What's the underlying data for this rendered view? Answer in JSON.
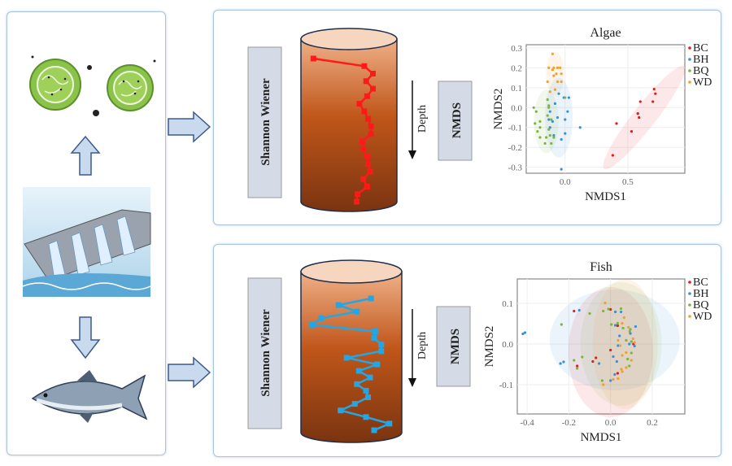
{
  "colors": {
    "BC": "#e41a1c",
    "BH": "#3a8fd9",
    "BQ": "#7cb342",
    "WD": "#f0a030",
    "algae_profile": "#ff1a1a",
    "fish_profile": "#22a7e6",
    "arrow_fill": "#c9d9ee",
    "arrow_stroke": "#3b5b8c",
    "label_box": "#d5dbe6"
  },
  "left_panel": {
    "icons": [
      "algae-cells-icon",
      "arrow-up-icon",
      "dam-icon",
      "arrow-down-icon",
      "fish-icon"
    ]
  },
  "top": {
    "shannon_label": "Shannon Wiener",
    "depth_label": "Depth",
    "nmds_label": "NMDS",
    "profile": [
      0.13,
      0.66,
      0.75,
      0.68,
      0.75,
      0.69,
      0.61,
      0.66,
      0.7,
      0.73,
      0.73,
      0.64,
      0.65,
      0.69,
      0.7,
      0.72,
      0.65,
      0.69,
      0.59,
      0.58
    ]
  },
  "bottom": {
    "shannon_label": "Shannon Wiener",
    "depth_label": "Depth",
    "nmds_label": "NMDS",
    "profile": [
      0.69,
      0.37,
      0.55,
      0.2,
      0.11,
      0.73,
      0.72,
      0.79,
      0.79,
      0.45,
      0.75,
      0.57,
      0.68,
      0.55,
      0.64,
      0.66,
      0.53,
      0.39,
      0.64,
      0.87,
      0.72
    ]
  },
  "chart_data": [
    {
      "type": "scatter",
      "title": "Algae",
      "xlabel": "NMDS1",
      "ylabel": "NMDS2",
      "xlim": [
        -0.31,
        0.955
      ],
      "ylim": [
        -0.33,
        0.316
      ],
      "xticks": [
        "0.0",
        "0.5"
      ],
      "xtick_values": [
        0,
        0.5
      ],
      "yticks": [
        "0.3",
        "0.2",
        "0.1",
        "0.0",
        "-0.1",
        "-0.2",
        "-0.3"
      ],
      "ytick_values": [
        0.3,
        0.2,
        0.1,
        0,
        -0.1,
        -0.2,
        -0.3
      ],
      "grid": true,
      "legend": "right",
      "ellipses": true,
      "series": [
        {
          "name": "BC",
          "points": [
            [
              0.71,
              0.093
            ],
            [
              0.72,
              0.07
            ],
            [
              0.7,
              0.03
            ],
            [
              0.6,
              0.03
            ],
            [
              0.58,
              -0.03
            ],
            [
              0.59,
              -0.05
            ],
            [
              0.53,
              -0.12
            ],
            [
              0.41,
              -0.08
            ],
            [
              0.38,
              -0.24
            ]
          ]
        },
        {
          "name": "BH",
          "points": [
            [
              -0.05,
              0.07
            ],
            [
              -0.01,
              0.05
            ],
            [
              0.03,
              0.05
            ],
            [
              -0.08,
              0.02
            ],
            [
              -0.12,
              -0.02
            ],
            [
              0.02,
              -0.02
            ],
            [
              -0.13,
              -0.06
            ],
            [
              -0.1,
              -0.07
            ],
            [
              -0.06,
              -0.05
            ],
            [
              0,
              -0.06
            ],
            [
              -0.12,
              -0.1
            ],
            [
              -0.09,
              -0.14
            ],
            [
              0,
              -0.13
            ],
            [
              -0.03,
              -0.16
            ],
            [
              0.12,
              -0.1
            ],
            [
              -0.03,
              -0.31
            ]
          ]
        },
        {
          "name": "BQ",
          "points": [
            [
              -0.25,
              0
            ],
            [
              -0.23,
              -0.02
            ],
            [
              -0.14,
              0.04
            ],
            [
              -0.13,
              0.01
            ],
            [
              -0.13,
              0
            ],
            [
              -0.24,
              -0.08
            ],
            [
              -0.2,
              -0.07
            ],
            [
              -0.2,
              -0.1
            ],
            [
              -0.22,
              -0.12
            ],
            [
              -0.14,
              -0.04
            ],
            [
              -0.11,
              -0.06
            ],
            [
              -0.13,
              -0.11
            ],
            [
              -0.12,
              -0.14
            ],
            [
              -0.2,
              -0.15
            ],
            [
              -0.15,
              -0.15
            ],
            [
              -0.16,
              -0.18
            ],
            [
              -0.11,
              -0.18
            ],
            [
              -0.09,
              -0.15
            ],
            [
              0,
              0.05
            ]
          ]
        },
        {
          "name": "WD",
          "points": [
            [
              -0.1,
              0.27
            ],
            [
              -0.13,
              0.2
            ],
            [
              -0.09,
              0.2
            ],
            [
              -0.06,
              0.2
            ],
            [
              -0.04,
              0.2
            ],
            [
              -0.1,
              0.19
            ],
            [
              -0.07,
              0.17
            ],
            [
              -0.03,
              0.17
            ],
            [
              -0.14,
              0.13
            ],
            [
              -0.09,
              0.16
            ],
            [
              -0.06,
              0.13
            ],
            [
              -0.08,
              0.09
            ],
            [
              -0.12,
              0.08
            ],
            [
              -0.03,
              0.13
            ]
          ]
        }
      ]
    },
    {
      "type": "scatter",
      "title": "Fish",
      "xlabel": "NMDS1",
      "ylabel": "NMDS2",
      "xlim": [
        -0.447,
        0.356
      ],
      "ylim": [
        -0.172,
        0.16
      ],
      "xticks": [
        "-0.4",
        "-0.2",
        "0.0",
        "0.2"
      ],
      "xtick_values": [
        -0.4,
        -0.2,
        0,
        0.2
      ],
      "yticks": [
        "0.1",
        "0.0",
        "-0.1"
      ],
      "ytick_values": [
        0.1,
        0,
        -0.1
      ],
      "grid": true,
      "legend": "right",
      "ellipses": true,
      "series": [
        {
          "name": "BC",
          "points": [
            [
              -0.175,
              0.081
            ],
            [
              0,
              0.085
            ],
            [
              0.034,
              0.045
            ],
            [
              0,
              -0.015
            ],
            [
              -0.07,
              -0.034
            ],
            [
              -0.085,
              -0.043
            ],
            [
              -0.16,
              -0.054
            ],
            [
              0.034,
              -0.072
            ],
            [
              0.11,
              0
            ]
          ]
        },
        {
          "name": "BH",
          "points": [
            [
              -0.42,
              0.025
            ],
            [
              -0.41,
              0.028
            ],
            [
              -0.15,
              0.083
            ],
            [
              -0.24,
              -0.048
            ],
            [
              -0.225,
              -0.044
            ],
            [
              -0.055,
              -0.048
            ],
            [
              0.023,
              0.079
            ],
            [
              0.05,
              0.079
            ],
            [
              0.023,
              0.046
            ],
            [
              0.043,
              0.02
            ],
            [
              0.095,
              0.026
            ],
            [
              0.12,
              0.043
            ],
            [
              0.036,
              -0.004
            ],
            [
              0.013,
              -0.031
            ],
            [
              0.03,
              -0.043
            ],
            [
              0,
              -0.09
            ],
            [
              0.02,
              -0.075
            ],
            [
              0.09,
              0
            ],
            [
              0.115,
              -0.005
            ]
          ]
        },
        {
          "name": "BQ",
          "points": [
            [
              -0.235,
              0.048
            ],
            [
              -0.1,
              0.075
            ],
            [
              -0.035,
              0.081
            ],
            [
              -0.01,
              0.086
            ],
            [
              0.05,
              0.087
            ],
            [
              0.004,
              0.048
            ],
            [
              0.034,
              0.051
            ],
            [
              0.06,
              0.039
            ],
            [
              0.095,
              0.036
            ],
            [
              0.092,
              0.031
            ],
            [
              0.075,
              0.009
            ],
            [
              0.1,
              0.006
            ],
            [
              -0.136,
              -0.032
            ],
            [
              -0.175,
              -0.04
            ],
            [
              -0.16,
              -0.06
            ],
            [
              -0.04,
              -0.09
            ],
            [
              0.082,
              -0.037
            ],
            [
              0.09,
              -0.054
            ],
            [
              0.1,
              -0.022
            ]
          ]
        },
        {
          "name": "WD",
          "points": [
            [
              -0.026,
              0.101
            ],
            [
              0.065,
              0.065
            ],
            [
              0.056,
              0.051
            ],
            [
              0.086,
              0.041
            ],
            [
              0.036,
              0.009
            ],
            [
              0.046,
              -0.004
            ],
            [
              0.108,
              0.013
            ],
            [
              0.115,
              0.004
            ],
            [
              0.075,
              -0.021
            ],
            [
              0.056,
              -0.028
            ],
            [
              0.1,
              -0.04
            ],
            [
              0.075,
              -0.058
            ],
            [
              0.052,
              -0.062
            ],
            [
              0.056,
              -0.068
            ],
            [
              0.036,
              -0.085
            ],
            [
              0.013,
              -0.087
            ],
            [
              -0.035,
              -0.1
            ]
          ]
        }
      ]
    }
  ]
}
